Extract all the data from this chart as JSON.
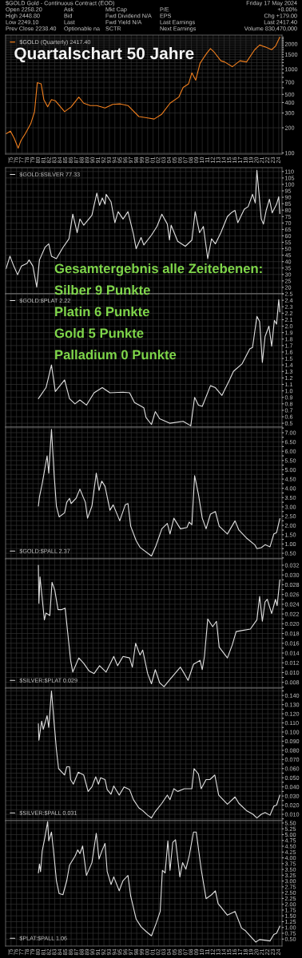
{
  "chart_data": [
    {
      "type": "line",
      "title": "Quartalschart 50 Jahre",
      "annotations": [
        "$GOLD Gold - Continuous Contract (EOD)",
        "Open 2258.20",
        "High 2448.80",
        "Low 2249.10",
        "Prev Close 2238.40",
        "Ask",
        "Bid",
        "Last",
        "Optionable na",
        "Mkt Cap",
        "Fwd Dividend N/A",
        "Fwd Yield N/A",
        "SCTR",
        "P/E",
        "EPS",
        "Last Earnings",
        "Next Earnings",
        "Friday 17 May 2024",
        "+8.00%",
        "Chg +179.00",
        "Last 2417.40",
        "Volume 830,470,000"
      ],
      "x": [
        1974.1,
        1974.9,
        1975.6,
        1976.3,
        1976.8,
        1977.6,
        1978.6,
        1979.3,
        1979.8,
        1980.5,
        1981.0,
        1981.7,
        1982.4,
        1983.1,
        1984.8,
        1986.0,
        1987.4,
        1988.3,
        1989.5,
        1990.7,
        1992.2,
        1993.6,
        1995.0,
        1996.4,
        1998.4,
        1999.8,
        2001.2,
        2002.6,
        2004.1,
        2005.7,
        2006.5,
        2007.5,
        2008.1,
        2008.8,
        2009.6,
        2010.8,
        2011.5,
        2012.2,
        2013.4,
        2014.1,
        2015.5,
        2016.9,
        2018.1,
        2019.6,
        2020.5,
        2021.7,
        2022.7,
        2023.4,
        2024.2
      ],
      "series": [
        {
          "name": "$GOLD (Quarterly) 2417.40",
          "color": "#f07f1e",
          "values": [
            170,
            182,
            149,
            114,
            140,
            170,
            223,
            311,
            690,
            670,
            434,
            355,
            434,
            420,
            311,
            355,
            464,
            393,
            368,
            368,
            344,
            380,
            385,
            368,
            272,
            263,
            254,
            291,
            393,
            464,
            607,
            670,
            905,
            740,
            1181,
            1542,
            1760,
            1592,
            1260,
            1220,
            1070,
            1260,
            1220,
            1708,
            1943,
            1822,
            1708,
            1880,
            2417.4
          ]
        }
      ],
      "log": true,
      "xlim": [
        1974,
        2024.6
      ],
      "ylim": [
        97,
        2550
      ],
      "yticks": [
        100,
        200,
        300,
        400,
        500,
        {
          "value": 600,
          "label": null
        },
        700,
        {
          "value": 800,
          "label": null
        },
        {
          "value": 900,
          "label": null
        },
        1000,
        {
          "value": 1100,
          "label": null
        },
        {
          "value": 1200,
          "label": null
        },
        {
          "value": 1300,
          "label": null
        },
        {
          "value": 1400,
          "label": null
        },
        1500,
        {
          "value": 1600,
          "label": null
        },
        {
          "value": 1700,
          "label": null
        },
        {
          "value": 1800,
          "label": null
        },
        {
          "value": 1900,
          "label": null
        },
        2000,
        {
          "value": 2100,
          "label": null
        },
        {
          "value": 2200,
          "label": null
        },
        {
          "value": 2300,
          "label": null
        },
        {
          "value": 2400,
          "label": null
        }
      ],
      "xticks": [
        {
          "value": 1975,
          "label": "75"
        },
        {
          "value": 1976,
          "label": "76"
        },
        {
          "value": 1977,
          "label": "77"
        },
        {
          "value": 1978,
          "label": "78"
        },
        {
          "value": 1979,
          "label": "79"
        },
        {
          "value": 1980,
          "label": "80"
        },
        {
          "value": 1981,
          "label": "81"
        },
        {
          "value": 1982,
          "label": "82"
        },
        {
          "value": 1983,
          "label": "83"
        },
        {
          "value": 1984,
          "label": "84"
        },
        {
          "value": 1985,
          "label": "85"
        },
        {
          "value": 1986,
          "label": "86"
        },
        {
          "value": 1987,
          "label": "87"
        },
        {
          "value": 1988,
          "label": "88"
        },
        {
          "value": 1989,
          "label": "89"
        },
        {
          "value": 1990,
          "label": "90"
        },
        {
          "value": 1991,
          "label": "91"
        },
        {
          "value": 1992,
          "label": "92"
        },
        {
          "value": 1993,
          "label": "93"
        },
        {
          "value": 1994,
          "label": "94"
        },
        {
          "value": 1995,
          "label": "95"
        },
        {
          "value": 1996,
          "label": "96"
        },
        {
          "value": 1997,
          "label": "97"
        },
        {
          "value": 1998,
          "label": "98"
        },
        {
          "value": 1999,
          "label": "99"
        },
        {
          "value": 2000,
          "label": "00"
        },
        {
          "value": 2001,
          "label": "01"
        },
        {
          "value": 2002,
          "label": "02"
        },
        {
          "value": 2003,
          "label": "03"
        },
        {
          "value": 2004,
          "label": "04"
        },
        {
          "value": 2005,
          "label": "05"
        },
        {
          "value": 2006,
          "label": "06"
        },
        {
          "value": 2007,
          "label": "07"
        },
        {
          "value": 2008,
          "label": "08"
        },
        {
          "value": 2009,
          "label": "09"
        },
        {
          "value": 2010,
          "label": "10"
        },
        {
          "value": 2011,
          "label": "11"
        },
        {
          "value": 2012,
          "label": "12"
        },
        {
          "value": 2013,
          "label": "13"
        },
        {
          "value": 2014,
          "label": "14"
        },
        {
          "value": 2015,
          "label": "15"
        },
        {
          "value": 2016,
          "label": "16"
        },
        {
          "value": 2017,
          "label": "17"
        },
        {
          "value": 2018,
          "label": "18"
        },
        {
          "value": 2019,
          "label": "19"
        },
        {
          "value": 2020,
          "label": "20"
        },
        {
          "value": 2021,
          "label": "21"
        },
        {
          "value": 2022,
          "label": "22"
        },
        {
          "value": 2023,
          "label": "23"
        },
        {
          "value": 2024,
          "label": "24"
        }
      ],
      "grid": true,
      "legend": "top left"
    },
    {
      "type": "line",
      "annotations": [
        "Gesamtergebnis alle Zeitebenen:",
        "Silber 9 Punkte",
        "Platin 6 Punkte",
        "Gold 5 Punkte",
        "Palladium 0 Punkte"
      ],
      "x": [
        1974.1,
        1974.8,
        1975.5,
        1976.2,
        1976.9,
        1977.9,
        1978.3,
        1979.0,
        1979.7,
        1980.2,
        1981.2,
        1981.9,
        1982.4,
        1983.3,
        1984.5,
        1985.6,
        1986.3,
        1987.1,
        1987.6,
        1988.3,
        1989.8,
        1990.7,
        1991.2,
        1991.7,
        1992.2,
        1992.4,
        1993.3,
        1994.0,
        1994.6,
        1995.5,
        1996.4,
        1997.4,
        1997.9,
        1998.8,
        1999.3,
        2000.7,
        2001.7,
        2002.6,
        2003.6,
        2004.0,
        2004.3,
        2005.5,
        2006.9,
        2008.1,
        2008.7,
        2009.5,
        2010.2,
        2011.0,
        2011.7,
        2012.4,
        2013.4,
        2014.6,
        2015.3,
        2016.0,
        2016.5,
        2017.7,
        2018.4,
        2019.2,
        2019.7,
        2020.0,
        2020.8,
        2021.2,
        2021.7,
        2022.3,
        2022.8,
        2023.6,
        2024.0,
        2024.2
      ],
      "series": [
        {
          "name": "$GOLD:$SILVER 77.33",
          "color": "#e0e0e0",
          "values": [
            34.6,
            44.2,
            36.5,
            29.8,
            36.5,
            38.5,
            41.3,
            36.5,
            20.2,
            41.3,
            51.0,
            53.8,
            44.2,
            42.3,
            51.0,
            57.7,
            76.9,
            62.5,
            73.1,
            68.3,
            76.0,
            93.3,
            83.7,
            89.4,
            84.6,
            92.3,
            86.5,
            70.2,
            78.8,
            73.1,
            78.8,
            61.5,
            50.0,
            58.7,
            52.9,
            60.6,
            67.3,
            76.9,
            69.2,
            56.7,
            68.3,
            55.8,
            51.9,
            56.7,
            78.8,
            62.5,
            67.3,
            42.3,
            57.7,
            53.8,
            62.5,
            75.0,
            77.9,
            79.8,
            70.2,
            80.8,
            82.7,
            92.3,
            85.6,
            111,
            73.1,
            69.2,
            79.8,
            88.5,
            77.9,
            84.6,
            90.4,
            77.33
          ]
        }
      ],
      "xlim": [
        1974,
        2024.6
      ],
      "ylim": [
        15,
        113
      ],
      "yticks": [
        {
          "value": 15,
          "label": null
        },
        20,
        25,
        30,
        35,
        40,
        45,
        50,
        55,
        60,
        65,
        70,
        75,
        80,
        85,
        90,
        95,
        100,
        105,
        110
      ],
      "xticks": [
        1975,
        1976,
        1977,
        1978,
        1979,
        1980,
        1981,
        1982,
        1983,
        1984,
        1985,
        1986,
        1987,
        1988,
        1989,
        1990,
        1991,
        1992,
        1993,
        1994,
        1995,
        1996,
        1997,
        1998,
        1999,
        2000,
        2001,
        2002,
        2003,
        2004,
        2005,
        2006,
        2007,
        2008,
        2009,
        2010,
        2011,
        2012,
        2013,
        2014,
        2015,
        2016,
        2017,
        2018,
        2019,
        2020,
        2021,
        2022,
        2023,
        2024
      ],
      "tick_labels": "y",
      "grid": true,
      "legend": "top left"
    },
    {
      "type": "line",
      "x": [
        1980.0,
        1981.4,
        1982.4,
        1983.1,
        1984.8,
        1985.7,
        1986.7,
        1987.6,
        1988.8,
        1990.2,
        1991.7,
        1993.1,
        1995.5,
        1996.7,
        1997.6,
        1999.3,
        1999.7,
        2000.7,
        2001.4,
        2002.2,
        2004.1,
        2006.5,
        2007.9,
        2008.6,
        2009.3,
        2010.0,
        2011.5,
        2012.4,
        2013.6,
        2015.0,
        2015.7,
        2017.3,
        2018.7,
        2019.2,
        2020.0,
        2020.5,
        2021.0,
        2021.5,
        2022.2,
        2022.7,
        2023.2,
        2023.6,
        2024.0,
        2024.2
      ],
      "series": [
        {
          "name": "$GOLD:$PLAT 2.22",
          "color": "#e0e0e0",
          "values": [
            0.88,
            1.05,
            1.4,
            0.99,
            1.17,
            0.88,
            0.8,
            0.86,
            0.78,
            0.97,
            1.05,
            0.97,
            0.98,
            0.97,
            0.82,
            0.74,
            0.59,
            0.48,
            0.68,
            0.57,
            0.5,
            0.53,
            0.46,
            0.9,
            0.78,
            0.76,
            1.08,
            1.05,
            0.93,
            1.17,
            1.3,
            1.42,
            1.65,
            1.67,
            2.15,
            2.07,
            1.44,
            1.84,
            2.0,
            1.69,
            2.09,
            2.03,
            2.41,
            2.22
          ]
        }
      ],
      "xlim": [
        1974,
        2024.6
      ],
      "ylim": [
        0.44,
        2.5
      ],
      "yticks": [
        0.5,
        0.6,
        0.7,
        0.8,
        0.9,
        {
          "value": 1.0,
          "label": "1.0"
        },
        1.1,
        1.2,
        1.3,
        1.4,
        1.5,
        1.6,
        1.7,
        1.8,
        1.9,
        {
          "value": 2.0,
          "label": "2.0"
        },
        2.1,
        2.2,
        2.3,
        2.4,
        2.5
      ],
      "xticks": [
        1975,
        1976,
        1977,
        1978,
        1979,
        1980,
        1981,
        1982,
        1983,
        1984,
        1985,
        1986,
        1987,
        1988,
        1989,
        1990,
        1991,
        1992,
        1993,
        1994,
        1995,
        1996,
        1997,
        1998,
        1999,
        2000,
        2001,
        2002,
        2003,
        2004,
        2005,
        2006,
        2007,
        2008,
        2009,
        2010,
        2011,
        2012,
        2013,
        2014,
        2015,
        2016,
        2017,
        2018,
        2019,
        2020,
        2021,
        2022,
        2023,
        2024
      ],
      "tick_labels": "y",
      "grid": true,
      "legend": "top left"
    },
    {
      "type": "line",
      "x": [
        1980.0,
        1980.2,
        1980.7,
        1981.6,
        1981.9,
        1982.4,
        1982.9,
        1983.3,
        1983.8,
        1984.8,
        1985.2,
        1985.7,
        1986.0,
        1986.9,
        1987.6,
        1988.6,
        1989.0,
        1989.8,
        1990.6,
        1991.1,
        1991.6,
        1992.2,
        1993.1,
        1993.7,
        1994.9,
        1995.9,
        1996.4,
        1996.9,
        1997.9,
        1998.6,
        2000.7,
        2001.5,
        2002.6,
        2003.6,
        2004.1,
        2004.8,
        2006.0,
        2007.2,
        2007.6,
        2008.1,
        2008.6,
        2009.3,
        2010.0,
        2010.7,
        2011.5,
        2012.4,
        2013.1,
        2014.6,
        2016.0,
        2016.7,
        2018.1,
        2019.6,
        2020.0,
        2020.8,
        2021.5,
        2022.4,
        2023.1,
        2023.6,
        2024.2
      ],
      "series": [
        {
          "name": "$GOLD:$PALL 2.37",
          "color": "#e0e0e0",
          "values": [
            3.04,
            3.54,
            4.25,
            5.75,
            4.82,
            7.18,
            4.68,
            3.04,
            2.46,
            2.68,
            3.25,
            3.46,
            3.18,
            3.46,
            3.96,
            3.25,
            2.39,
            3.04,
            4.82,
            3.89,
            4.39,
            4.11,
            2.82,
            3.11,
            2.25,
            3.11,
            3.18,
            1.96,
            1.18,
            0.82,
            0.35,
            0.89,
            1.82,
            2.11,
            1.54,
            2.39,
            1.82,
            1.89,
            2.18,
            2.04,
            4.68,
            3.68,
            2.39,
            1.82,
            2.61,
            2.75,
            1.96,
            1.54,
            2.25,
            1.75,
            1.32,
            0.96,
            0.75,
            0.8,
            0.96,
            0.85,
            1.54,
            1.61,
            2.37
          ]
        }
      ],
      "xlim": [
        1974,
        2024.6
      ],
      "ylim": [
        0.2,
        7.3
      ],
      "yticks": [
        {
          "value": 0.25,
          "label": null
        },
        {
          "value": 0.5,
          "label": "0.50"
        },
        {
          "value": 0.75,
          "label": null
        },
        {
          "value": 1.0,
          "label": "1.00"
        },
        {
          "value": 1.25,
          "label": null
        },
        {
          "value": 1.5,
          "label": "1.50"
        },
        {
          "value": 1.75,
          "label": null
        },
        {
          "value": 2.0,
          "label": "2.00"
        },
        {
          "value": 2.25,
          "label": null
        },
        {
          "value": 2.5,
          "label": "2.50"
        },
        {
          "value": 2.75,
          "label": null
        },
        {
          "value": 3.0,
          "label": "3.00"
        },
        {
          "value": 3.25,
          "label": null
        },
        {
          "value": 3.5,
          "label": "3.50"
        },
        {
          "value": 3.75,
          "label": null
        },
        {
          "value": 4.0,
          "label": "4.00"
        },
        {
          "value": 4.25,
          "label": null
        },
        {
          "value": 4.5,
          "label": "4.50"
        },
        {
          "value": 4.75,
          "label": null
        },
        {
          "value": 5.0,
          "label": "5.00"
        },
        {
          "value": 5.25,
          "label": null
        },
        {
          "value": 5.5,
          "label": "5.50"
        },
        {
          "value": 5.75,
          "label": null
        },
        {
          "value": 6.0,
          "label": "6.00"
        },
        {
          "value": 6.25,
          "label": null
        },
        {
          "value": 6.5,
          "label": "6.50"
        },
        {
          "value": 6.75,
          "label": null
        },
        {
          "value": 7.0,
          "label": "7.00"
        },
        {
          "value": 7.25,
          "label": null
        }
      ],
      "xticks": [
        1975,
        1976,
        1977,
        1978,
        1979,
        1980,
        1981,
        1982,
        1983,
        1984,
        1985,
        1986,
        1987,
        1988,
        1989,
        1990,
        1991,
        1992,
        1993,
        1994,
        1995,
        1996,
        1997,
        1998,
        1999,
        2000,
        2001,
        2002,
        2003,
        2004,
        2005,
        2006,
        2007,
        2008,
        2009,
        2010,
        2011,
        2012,
        2013,
        2014,
        2015,
        2016,
        2017,
        2018,
        2019,
        2020,
        2021,
        2022,
        2023,
        2024
      ],
      "tick_labels": "y",
      "grid": true,
      "legend": "bottom left"
    },
    {
      "type": "line",
      "x": [
        1980.0,
        1980.1,
        1980.3,
        1981.1,
        1981.4,
        1982.1,
        1982.5,
        1983.0,
        1983.6,
        1984.3,
        1984.9,
        1985.9,
        1986.3,
        1987.4,
        1988.3,
        1989.3,
        1990.2,
        1991.2,
        1992.4,
        1993.8,
        1994.5,
        1995.5,
        1996.7,
        1997.2,
        1997.8,
        1998.6,
        1999.1,
        2000.0,
        2000.7,
        2001.4,
        2002.2,
        2003.0,
        2003.8,
        2006.0,
        2006.7,
        2007.4,
        2008.4,
        2009.6,
        2010.0,
        2010.4,
        2011.0,
        2011.9,
        2012.6,
        2013.1,
        2014.6,
        2015.5,
        2016.2,
        2017.2,
        2018.8,
        2020.0,
        2020.5,
        2021.0,
        2021.5,
        2021.9,
        2022.7,
        2023.4,
        2023.7,
        2024.2
      ],
      "series": [
        {
          "name": "$SILVER:$PLAT 0.029",
          "color": "#e0e0e0",
          "values": [
            0.032,
            0.0242,
            0.0296,
            0.0208,
            0.0222,
            0.0217,
            0.0285,
            0.0269,
            0.0229,
            0.0229,
            0.0232,
            0.0125,
            0.0101,
            0.013,
            0.0119,
            0.0103,
            0.0098,
            0.0114,
            0.0101,
            0.0133,
            0.0114,
            0.0133,
            0.013,
            0.0111,
            0.016,
            0.0136,
            0.0146,
            0.0098,
            0.0077,
            0.0106,
            0.0079,
            0.0071,
            0.0082,
            0.0111,
            0.0098,
            0.0084,
            0.0117,
            0.0125,
            0.0106,
            0.0133,
            0.021,
            0.0194,
            0.0205,
            0.0152,
            0.013,
            0.0157,
            0.0184,
            0.0186,
            0.0189,
            0.0208,
            0.0256,
            0.0205,
            0.0245,
            0.025,
            0.0221,
            0.025,
            0.0237,
            0.029
          ]
        }
      ],
      "xlim": [
        1974,
        2024.6
      ],
      "ylim": [
        0.0068,
        0.0333
      ],
      "yticks": [
        {
          "value": 0.007,
          "label": null
        },
        {
          "value": 0.008,
          "label": "0.008"
        },
        {
          "value": 0.009,
          "label": null
        },
        {
          "value": 0.01,
          "label": "0.010"
        },
        {
          "value": 0.011,
          "label": null
        },
        {
          "value": 0.012,
          "label": "0.012"
        },
        {
          "value": 0.013,
          "label": null
        },
        {
          "value": 0.014,
          "label": "0.014"
        },
        {
          "value": 0.015,
          "label": null
        },
        {
          "value": 0.016,
          "label": "0.016"
        },
        {
          "value": 0.017,
          "label": null
        },
        {
          "value": 0.018,
          "label": "0.018"
        },
        {
          "value": 0.019,
          "label": null
        },
        {
          "value": 0.02,
          "label": "0.020"
        },
        {
          "value": 0.021,
          "label": null
        },
        {
          "value": 0.022,
          "label": "0.022"
        },
        {
          "value": 0.023,
          "label": null
        },
        {
          "value": 0.024,
          "label": "0.024"
        },
        {
          "value": 0.025,
          "label": null
        },
        {
          "value": 0.026,
          "label": "0.026"
        },
        {
          "value": 0.027,
          "label": null
        },
        {
          "value": 0.028,
          "label": "0.028"
        },
        {
          "value": 0.029,
          "label": null
        },
        {
          "value": 0.03,
          "label": "0.030"
        },
        {
          "value": 0.031,
          "label": null
        },
        {
          "value": 0.032,
          "label": "0.032"
        }
      ],
      "xticks": [
        1975,
        1976,
        1977,
        1978,
        1979,
        1980,
        1981,
        1982,
        1983,
        1984,
        1985,
        1986,
        1987,
        1988,
        1989,
        1990,
        1991,
        1992,
        1993,
        1994,
        1995,
        1996,
        1997,
        1998,
        1999,
        2000,
        2001,
        2002,
        2003,
        2004,
        2005,
        2006,
        2007,
        2008,
        2009,
        2010,
        2011,
        2012,
        2013,
        2014,
        2015,
        2016,
        2017,
        2018,
        2019,
        2020,
        2021,
        2022,
        2023,
        2024
      ],
      "tick_labels": "y",
      "grid": true,
      "legend": "bottom left"
    },
    {
      "type": "line",
      "x": [
        1980.0,
        1980.1,
        1980.6,
        1980.9,
        1981.6,
        1981.9,
        1982.4,
        1982.9,
        1983.3,
        1983.7,
        1984.8,
        1985.2,
        1985.7,
        1985.9,
        1986.4,
        1987.3,
        1988.3,
        1989.1,
        1989.8,
        1990.5,
        1991.0,
        1991.4,
        1992.2,
        1992.6,
        1993.3,
        1993.8,
        1994.8,
        1995.7,
        1996.7,
        1997.4,
        1998.4,
        1999.1,
        2000.0,
        2000.7,
        2001.4,
        2002.6,
        2003.6,
        2004.1,
        2004.8,
        2005.5,
        2006.7,
        2007.4,
        2008.1,
        2008.5,
        2009.3,
        2009.8,
        2010.7,
        2011.4,
        2012.3,
        2013.0,
        2014.6,
        2016.0,
        2016.7,
        2018.1,
        2019.3,
        2020.0,
        2020.8,
        2021.5,
        2022.4,
        2023.1,
        2023.6,
        2024.2
      ],
      "series": [
        {
          "name": "$SILVER:$PALL 0.031",
          "color": "#e0e0e0",
          "values": [
            0.109,
            0.091,
            0.112,
            0.103,
            0.118,
            0.105,
            0.145,
            0.109,
            0.081,
            0.06,
            0.053,
            0.062,
            0.062,
            0.048,
            0.043,
            0.056,
            0.053,
            0.035,
            0.04,
            0.051,
            0.043,
            0.05,
            0.048,
            0.037,
            0.032,
            0.041,
            0.031,
            0.04,
            0.037,
            0.026,
            0.017,
            0.014,
            0.009,
            0.006,
            0.013,
            0.022,
            0.031,
            0.026,
            0.038,
            0.035,
            0.038,
            0.038,
            0.038,
            0.06,
            0.054,
            0.038,
            0.048,
            0.048,
            0.053,
            0.031,
            0.021,
            0.029,
            0.022,
            0.014,
            0.01,
            0.006,
            0.01,
            0.012,
            0.009,
            0.019,
            0.02,
            0.031
          ]
        }
      ],
      "xlim": [
        1974,
        2024.6
      ],
      "ylim": [
        0.003,
        0.148
      ],
      "yticks": [
        {
          "value": 0.005,
          "label": null
        },
        {
          "value": 0.01,
          "label": "0.010"
        },
        {
          "value": 0.015,
          "label": null
        },
        {
          "value": 0.02,
          "label": "0.020"
        },
        {
          "value": 0.025,
          "label": null
        },
        {
          "value": 0.03,
          "label": "0.030"
        },
        {
          "value": 0.035,
          "label": null
        },
        {
          "value": 0.04,
          "label": "0.040"
        },
        {
          "value": 0.045,
          "label": null
        },
        {
          "value": 0.05,
          "label": "0.050"
        },
        {
          "value": 0.055,
          "label": null
        },
        {
          "value": 0.06,
          "label": "0.060"
        },
        {
          "value": 0.065,
          "label": null
        },
        {
          "value": 0.07,
          "label": "0.070"
        },
        {
          "value": 0.075,
          "label": null
        },
        {
          "value": 0.08,
          "label": "0.080"
        },
        {
          "value": 0.085,
          "label": null
        },
        {
          "value": 0.09,
          "label": "0.090"
        },
        {
          "value": 0.095,
          "label": null
        },
        {
          "value": 0.1,
          "label": "0.100"
        },
        {
          "value": 0.105,
          "label": null
        },
        {
          "value": 0.11,
          "label": "0.110"
        },
        {
          "value": 0.115,
          "label": null
        },
        {
          "value": 0.12,
          "label": "0.120"
        },
        {
          "value": 0.125,
          "label": null
        },
        {
          "value": 0.13,
          "label": "0.130"
        },
        {
          "value": 0.135,
          "label": null
        },
        {
          "value": 0.14,
          "label": "0.140"
        },
        {
          "value": 0.145,
          "label": null
        }
      ],
      "xticks": [
        1975,
        1976,
        1977,
        1978,
        1979,
        1980,
        1981,
        1982,
        1983,
        1984,
        1985,
        1986,
        1987,
        1988,
        1989,
        1990,
        1991,
        1992,
        1993,
        1994,
        1995,
        1996,
        1997,
        1998,
        1999,
        2000,
        2001,
        2002,
        2003,
        2004,
        2005,
        2006,
        2007,
        2008,
        2009,
        2010,
        2011,
        2012,
        2013,
        2014,
        2015,
        2016,
        2017,
        2018,
        2019,
        2020,
        2021,
        2022,
        2023,
        2024
      ],
      "tick_labels": "y",
      "grid": true,
      "legend": "bottom left"
    },
    {
      "type": "line",
      "x": [
        1980.0,
        1980.2,
        1980.4,
        1980.7,
        1981.2,
        1981.7,
        1981.9,
        1982.4,
        1982.9,
        1983.3,
        1983.8,
        1984.5,
        1985.2,
        1985.7,
        1986.7,
        1987.2,
        1987.6,
        1988.1,
        1988.8,
        1989.8,
        1990.6,
        1991.1,
        1991.7,
        1992.2,
        1992.6,
        1993.3,
        1993.8,
        1994.8,
        1995.5,
        1996.4,
        1996.9,
        1997.9,
        1998.8,
        1999.8,
        2000.7,
        2001.6,
        2002.3,
        2002.7,
        2003.2,
        2003.7,
        2004.1,
        2004.6,
        2005.1,
        2005.9,
        2006.4,
        2007.0,
        2007.6,
        2008.4,
        2008.9,
        2009.8,
        2010.7,
        2011.7,
        2012.4,
        2012.9,
        2014.6,
        2016.0,
        2017.2,
        2017.9,
        2019.8,
        2020.5,
        2022.4,
        2023.1,
        2023.6,
        2024.2
      ],
      "series": [
        {
          "name": "$PLAT:$PALL 1.06",
          "color": "#e0e0e0",
          "values": [
            3.35,
            3.73,
            3.4,
            4.29,
            4.89,
            5.56,
            4.73,
            5.11,
            4.01,
            3.02,
            2.46,
            2.41,
            3.02,
            3.68,
            4.07,
            4.34,
            4.18,
            4.51,
            3.24,
            3.79,
            5.06,
            3.95,
            4.34,
            4.62,
            3.4,
            2.85,
            3.18,
            2.58,
            3.02,
            3.24,
            2.35,
            1.36,
            1.03,
            0.81,
            0.64,
            1.2,
            1.69,
            3.46,
            3.35,
            4.73,
            3.46,
            4.67,
            4.78,
            3.18,
            3.79,
            3.51,
            4.07,
            5.11,
            5.11,
            3.51,
            2.24,
            2.41,
            2.58,
            2.03,
            1.53,
            1.69,
            0.97,
            0.86,
            0.37,
            0.48,
            0.42,
            0.7,
            0.75,
            1.06
          ]
        }
      ],
      "xlim": [
        1974,
        2024.6
      ],
      "ylim": [
        0.2,
        5.6
      ],
      "yticks": [
        {
          "value": 0.5,
          "label": "0.50"
        },
        {
          "value": 0.75,
          "label": "0.75"
        },
        {
          "value": 1.0,
          "label": "1.00"
        },
        {
          "value": 1.25,
          "label": "1.25"
        },
        {
          "value": 1.5,
          "label": "1.50"
        },
        {
          "value": 1.75,
          "label": "1.75"
        },
        {
          "value": 2.0,
          "label": "2.00"
        },
        {
          "value": 2.25,
          "label": "2.25"
        },
        {
          "value": 2.5,
          "label": "2.50"
        },
        {
          "value": 2.75,
          "label": "2.75"
        },
        {
          "value": 3.0,
          "label": "3.00"
        },
        {
          "value": 3.25,
          "label": "3.25"
        },
        {
          "value": 3.5,
          "label": "3.50"
        },
        {
          "value": 3.75,
          "label": "3.75"
        },
        {
          "value": 4.0,
          "label": "4.00"
        },
        {
          "value": 4.25,
          "label": "4.25"
        },
        {
          "value": 4.5,
          "label": "4.50"
        },
        {
          "value": 4.75,
          "label": "4.75"
        },
        {
          "value": 5.0,
          "label": "5.00"
        },
        {
          "value": 5.25,
          "label": "5.25"
        },
        {
          "value": 5.5,
          "label": "5.50"
        }
      ],
      "xticks": [
        {
          "value": 1975,
          "label": "75"
        },
        {
          "value": 1976,
          "label": "76"
        },
        {
          "value": 1977,
          "label": "77"
        },
        {
          "value": 1978,
          "label": "78"
        },
        {
          "value": 1979,
          "label": "79"
        },
        {
          "value": 1980,
          "label": "80"
        },
        {
          "value": 1981,
          "label": "81"
        },
        {
          "value": 1982,
          "label": "82"
        },
        {
          "value": 1983,
          "label": "83"
        },
        {
          "value": 1984,
          "label": "84"
        },
        {
          "value": 1985,
          "label": "85"
        },
        {
          "value": 1986,
          "label": "86"
        },
        {
          "value": 1987,
          "label": "87"
        },
        {
          "value": 1988,
          "label": "88"
        },
        {
          "value": 1989,
          "label": "89"
        },
        {
          "value": 1990,
          "label": "90"
        },
        {
          "value": 1991,
          "label": "91"
        },
        {
          "value": 1992,
          "label": "92"
        },
        {
          "value": 1993,
          "label": "93"
        },
        {
          "value": 1994,
          "label": "94"
        },
        {
          "value": 1995,
          "label": "95"
        },
        {
          "value": 1996,
          "label": "96"
        },
        {
          "value": 1997,
          "label": "97"
        },
        {
          "value": 1998,
          "label": "98"
        },
        {
          "value": 1999,
          "label": "99"
        },
        {
          "value": 2000,
          "label": "00"
        },
        {
          "value": 2001,
          "label": "01"
        },
        {
          "value": 2002,
          "label": "02"
        },
        {
          "value": 2003,
          "label": "03"
        },
        {
          "value": 2004,
          "label": "04"
        },
        {
          "value": 2005,
          "label": "05"
        },
        {
          "value": 2006,
          "label": "06"
        },
        {
          "value": 2007,
          "label": "07"
        },
        {
          "value": 2008,
          "label": "08"
        },
        {
          "value": 2009,
          "label": "09"
        },
        {
          "value": 2010,
          "label": "10"
        },
        {
          "value": 2011,
          "label": "11"
        },
        {
          "value": 2012,
          "label": "12"
        },
        {
          "value": 2013,
          "label": "13"
        },
        {
          "value": 2014,
          "label": "14"
        },
        {
          "value": 2015,
          "label": "15"
        },
        {
          "value": 2016,
          "label": "16"
        },
        {
          "value": 2017,
          "label": "17"
        },
        {
          "value": 2018,
          "label": "18"
        },
        {
          "value": 2019,
          "label": "19"
        },
        {
          "value": 2020,
          "label": "20"
        },
        {
          "value": 2021,
          "label": "21"
        },
        {
          "value": 2022,
          "label": "22"
        },
        {
          "value": 2023,
          "label": "23"
        },
        {
          "value": 2024,
          "label": "24"
        }
      ],
      "grid": true,
      "legend": "bottom left"
    }
  ]
}
